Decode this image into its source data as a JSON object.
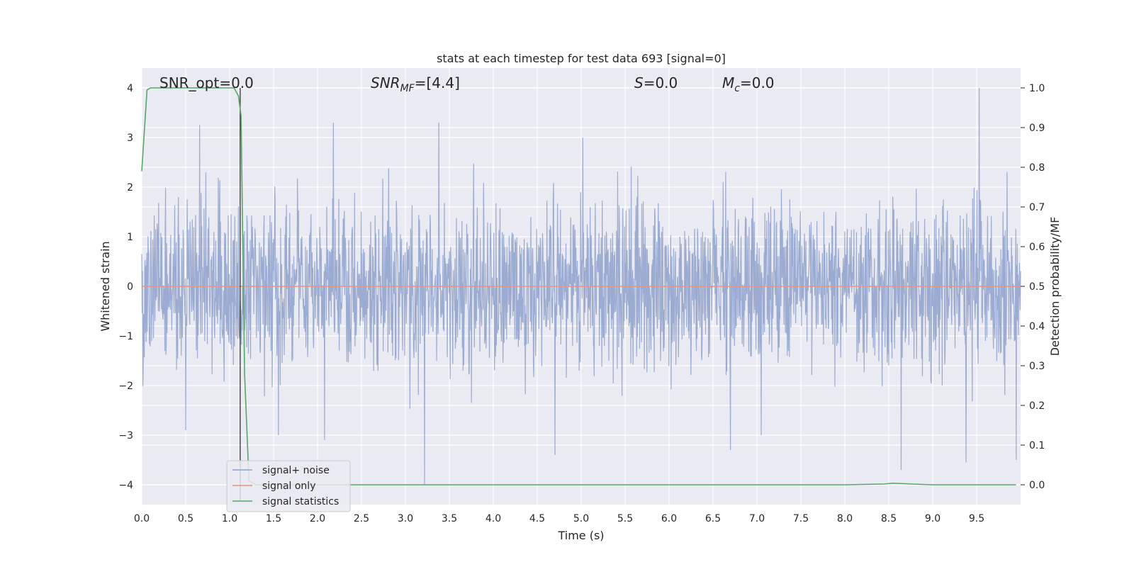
{
  "chart_data": {
    "type": "line",
    "title": "stats at each timestep for test data 693 [signal=0]",
    "xlabel": "Time (s)",
    "ylabel": "Whitened strain",
    "y2label": "Detection probability/MF",
    "xlim": [
      0.0,
      10.0
    ],
    "ylim": [
      -4.4,
      4.4
    ],
    "y2lim": [
      -0.05,
      1.05
    ],
    "x_ticks": [
      "0.0",
      "0.5",
      "1.0",
      "1.5",
      "2.0",
      "2.5",
      "3.0",
      "3.5",
      "4.0",
      "4.5",
      "5.0",
      "5.5",
      "6.0",
      "6.5",
      "7.0",
      "7.5",
      "8.0",
      "8.5",
      "9.0",
      "9.5"
    ],
    "y_ticks": [
      "4",
      "3",
      "2",
      "1",
      "0",
      "−1",
      "−2",
      "−3",
      "−4"
    ],
    "y2_ticks": [
      "1.0",
      "0.9",
      "0.8",
      "0.7",
      "0.6",
      "0.5",
      "0.4",
      "0.3",
      "0.2",
      "0.1",
      "0.0"
    ],
    "grid": true,
    "legend_position": "lower-left",
    "annotations": {
      "snr_opt": "SNR_opt=0.0",
      "snr_mf_main": "SNR",
      "snr_mf_sub": "MF",
      "snr_mf_value": "=[4.4]",
      "s_main": "S",
      "s_value": "=0.0",
      "mc_main": "M",
      "mc_sub": "c",
      "mc_value": "=0.0"
    },
    "marker_line_x": 1.12,
    "series": [
      {
        "name": "signal+ noise",
        "color": "#8da0cb",
        "axis": "left",
        "style": "dense noise, approx. Gaussian, envelope ~±1.6, peaks to ±3.3",
        "spikes": [
          [
            0.66,
            3.25
          ],
          [
            2.18,
            3.3
          ],
          [
            3.38,
            3.3
          ],
          [
            5.02,
            3.0
          ],
          [
            9.53,
            4.0
          ],
          [
            3.22,
            -4.0
          ],
          [
            8.64,
            -3.7
          ],
          [
            9.38,
            -3.55
          ],
          [
            9.95,
            -3.5
          ],
          [
            4.7,
            -3.4
          ],
          [
            6.7,
            -3.3
          ],
          [
            7.05,
            -3.0
          ],
          [
            2.08,
            -3.1
          ],
          [
            0.5,
            -2.9
          ]
        ]
      },
      {
        "name": "signal only",
        "color": "#e5967b",
        "axis": "left",
        "x": [
          0.0,
          10.0
        ],
        "y": [
          0.0,
          0.0
        ]
      },
      {
        "name": "signal statistics",
        "color": "#55a868",
        "axis": "right",
        "x": [
          0.0,
          0.06,
          0.1,
          0.2,
          0.4,
          0.6,
          0.8,
          1.0,
          1.05,
          1.1,
          1.13,
          1.17,
          1.22,
          1.3,
          1.5,
          2.0,
          3.0,
          4.0,
          5.0,
          6.0,
          7.0,
          8.0,
          8.45,
          8.55,
          8.65,
          8.75,
          9.0,
          9.5,
          9.95
        ],
        "y": [
          0.79,
          0.995,
          1.0,
          1.0,
          1.0,
          1.0,
          1.0,
          1.0,
          1.0,
          0.98,
          0.93,
          0.28,
          0.01,
          0.0,
          0.0,
          0.0,
          0.0,
          0.0,
          0.0,
          0.0,
          0.0,
          0.0,
          0.002,
          0.004,
          0.003,
          0.002,
          0.0,
          0.0,
          0.0
        ]
      }
    ]
  }
}
